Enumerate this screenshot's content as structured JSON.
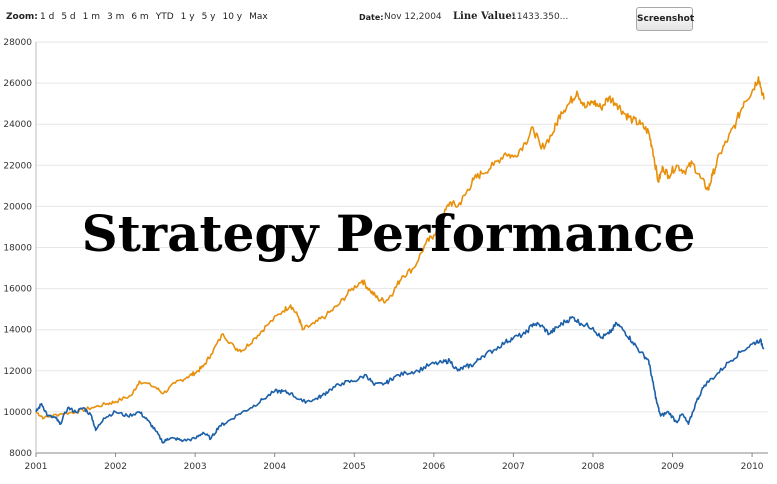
{
  "toolbar": {
    "zoom_label": "Zoom:",
    "zoom_options": [
      "1 d",
      "5 d",
      "1 m",
      "3 m",
      "6 m",
      "YTD",
      "1 y",
      "5 y",
      "10 y",
      "Max"
    ],
    "date_label": "Date:",
    "date_value": "Nov 12,2004",
    "line_value_label": "Line Value:",
    "line_value": "11433.350...",
    "screenshot_button": "Screenshot"
  },
  "overlay_title": "Strategy Performance",
  "chart_data": {
    "type": "line",
    "title": "",
    "xlabel": "",
    "ylabel": "",
    "xlim": [
      2001,
      2010.2
    ],
    "ylim": [
      8000,
      28000
    ],
    "yticks": [
      8000,
      10000,
      12000,
      14000,
      16000,
      18000,
      20000,
      22000,
      24000,
      26000,
      28000
    ],
    "xticks": [
      "2001",
      "2002",
      "2003",
      "2004",
      "2005",
      "2006",
      "2007",
      "2008",
      "2009",
      "2010"
    ],
    "grid": true,
    "legend": "none",
    "series": [
      {
        "color": "#e8900c",
        "points": [
          [
            2001.0,
            10000
          ],
          [
            2001.1,
            9700
          ],
          [
            2001.3,
            9900
          ],
          [
            2001.5,
            10000
          ],
          [
            2001.7,
            10200
          ],
          [
            2001.9,
            10400
          ],
          [
            2002.0,
            10500
          ],
          [
            2002.2,
            10800
          ],
          [
            2002.3,
            11500
          ],
          [
            2002.5,
            11200
          ],
          [
            2002.6,
            10900
          ],
          [
            2002.75,
            11400
          ],
          [
            2002.9,
            11700
          ],
          [
            2003.0,
            11900
          ],
          [
            2003.1,
            12200
          ],
          [
            2003.2,
            12800
          ],
          [
            2003.35,
            13800
          ],
          [
            2003.5,
            13100
          ],
          [
            2003.6,
            13000
          ],
          [
            2003.75,
            13600
          ],
          [
            2003.9,
            14200
          ],
          [
            2004.1,
            14900
          ],
          [
            2004.2,
            15200
          ],
          [
            2004.3,
            14600
          ],
          [
            2004.35,
            14000
          ],
          [
            2004.5,
            14300
          ],
          [
            2004.65,
            14700
          ],
          [
            2004.8,
            15200
          ],
          [
            2004.95,
            15900
          ],
          [
            2005.1,
            16400
          ],
          [
            2005.2,
            15900
          ],
          [
            2005.3,
            15500
          ],
          [
            2005.4,
            15400
          ],
          [
            2005.5,
            15900
          ],
          [
            2005.6,
            16600
          ],
          [
            2005.75,
            17000
          ],
          [
            2005.9,
            18200
          ],
          [
            2006.0,
            18600
          ],
          [
            2006.1,
            19400
          ],
          [
            2006.2,
            20200
          ],
          [
            2006.3,
            20000
          ],
          [
            2006.4,
            20600
          ],
          [
            2006.5,
            21300
          ],
          [
            2006.6,
            21600
          ],
          [
            2006.75,
            22000
          ],
          [
            2006.9,
            22600
          ],
          [
            2007.0,
            22400
          ],
          [
            2007.15,
            23100
          ],
          [
            2007.25,
            23800
          ],
          [
            2007.35,
            22800
          ],
          [
            2007.5,
            23600
          ],
          [
            2007.6,
            24600
          ],
          [
            2007.7,
            25000
          ],
          [
            2007.8,
            25600
          ],
          [
            2007.9,
            24800
          ],
          [
            2008.0,
            25100
          ],
          [
            2008.1,
            24800
          ],
          [
            2008.2,
            25300
          ],
          [
            2008.3,
            25000
          ],
          [
            2008.4,
            24500
          ],
          [
            2008.5,
            24200
          ],
          [
            2008.6,
            24000
          ],
          [
            2008.7,
            23600
          ],
          [
            2008.75,
            22800
          ],
          [
            2008.82,
            21200
          ],
          [
            2008.88,
            21900
          ],
          [
            2008.95,
            21500
          ],
          [
            2009.05,
            22000
          ],
          [
            2009.15,
            21700
          ],
          [
            2009.25,
            22100
          ],
          [
            2009.35,
            21400
          ],
          [
            2009.45,
            20800
          ],
          [
            2009.5,
            21500
          ],
          [
            2009.6,
            22600
          ],
          [
            2009.7,
            23300
          ],
          [
            2009.8,
            24100
          ],
          [
            2009.9,
            25100
          ],
          [
            2010.0,
            25600
          ],
          [
            2010.08,
            26300
          ],
          [
            2010.15,
            25200
          ]
        ]
      },
      {
        "color": "#1a5fa8",
        "points": [
          [
            2001.0,
            10000
          ],
          [
            2001.07,
            10400
          ],
          [
            2001.15,
            9800
          ],
          [
            2001.25,
            9700
          ],
          [
            2001.3,
            9400
          ],
          [
            2001.4,
            10200
          ],
          [
            2001.5,
            10000
          ],
          [
            2001.6,
            10200
          ],
          [
            2001.7,
            9800
          ],
          [
            2001.75,
            9100
          ],
          [
            2001.85,
            9700
          ],
          [
            2002.0,
            10000
          ],
          [
            2002.15,
            9800
          ],
          [
            2002.3,
            10000
          ],
          [
            2002.4,
            9600
          ],
          [
            2002.5,
            9100
          ],
          [
            2002.6,
            8500
          ],
          [
            2002.65,
            8700
          ],
          [
            2002.75,
            8700
          ],
          [
            2002.85,
            8600
          ],
          [
            2003.0,
            8700
          ],
          [
            2003.1,
            9000
          ],
          [
            2003.2,
            8700
          ],
          [
            2003.3,
            9300
          ],
          [
            2003.4,
            9500
          ],
          [
            2003.55,
            9900
          ],
          [
            2003.7,
            10200
          ],
          [
            2003.85,
            10600
          ],
          [
            2004.0,
            11000
          ],
          [
            2004.1,
            11000
          ],
          [
            2004.2,
            10900
          ],
          [
            2004.35,
            10500
          ],
          [
            2004.5,
            10600
          ],
          [
            2004.6,
            10800
          ],
          [
            2004.7,
            11100
          ],
          [
            2004.85,
            11400
          ],
          [
            2005.0,
            11500
          ],
          [
            2005.15,
            11800
          ],
          [
            2005.25,
            11300
          ],
          [
            2005.4,
            11400
          ],
          [
            2005.5,
            11700
          ],
          [
            2005.65,
            11900
          ],
          [
            2005.8,
            12000
          ],
          [
            2005.95,
            12300
          ],
          [
            2006.1,
            12400
          ],
          [
            2006.2,
            12500
          ],
          [
            2006.3,
            12000
          ],
          [
            2006.4,
            12200
          ],
          [
            2006.5,
            12300
          ],
          [
            2006.6,
            12700
          ],
          [
            2006.75,
            13000
          ],
          [
            2006.9,
            13400
          ],
          [
            2007.0,
            13600
          ],
          [
            2007.15,
            13800
          ],
          [
            2007.25,
            14300
          ],
          [
            2007.35,
            14200
          ],
          [
            2007.45,
            13800
          ],
          [
            2007.55,
            14100
          ],
          [
            2007.65,
            14400
          ],
          [
            2007.75,
            14600
          ],
          [
            2007.85,
            14300
          ],
          [
            2008.0,
            14100
          ],
          [
            2008.1,
            13600
          ],
          [
            2008.2,
            13800
          ],
          [
            2008.3,
            14300
          ],
          [
            2008.4,
            13900
          ],
          [
            2008.5,
            13400
          ],
          [
            2008.6,
            12900
          ],
          [
            2008.7,
            12500
          ],
          [
            2008.75,
            11500
          ],
          [
            2008.8,
            10500
          ],
          [
            2008.85,
            9800
          ],
          [
            2008.95,
            10000
          ],
          [
            2009.05,
            9500
          ],
          [
            2009.12,
            9900
          ],
          [
            2009.2,
            9400
          ],
          [
            2009.3,
            10500
          ],
          [
            2009.4,
            11300
          ],
          [
            2009.55,
            11800
          ],
          [
            2009.7,
            12400
          ],
          [
            2009.85,
            12900
          ],
          [
            2010.0,
            13300
          ],
          [
            2010.1,
            13500
          ],
          [
            2010.15,
            13100
          ]
        ]
      }
    ]
  }
}
